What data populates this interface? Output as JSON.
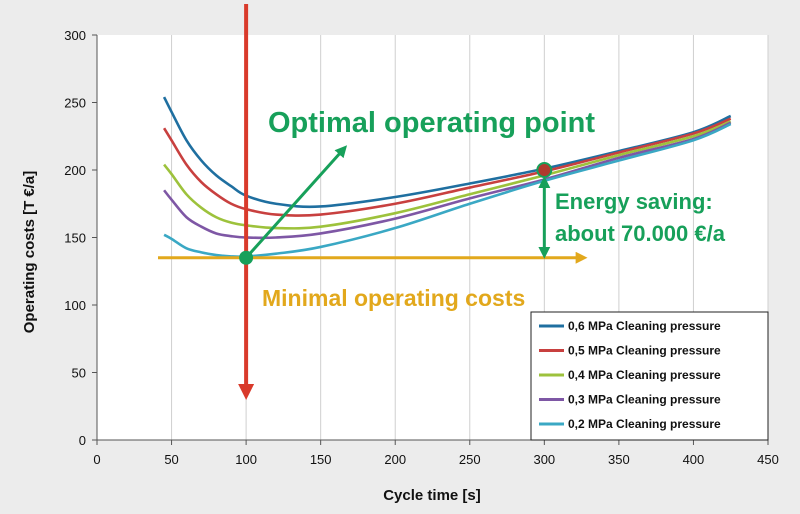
{
  "chart_data": {
    "type": "line",
    "xlabel": "Cycle time [s]",
    "ylabel": "Operating costs  [T €/a]",
    "xlim": [
      0,
      450
    ],
    "ylim": [
      0,
      300
    ],
    "x_ticks": [
      "0",
      "50",
      "100",
      "150",
      "200",
      "250",
      "300",
      "350",
      "400",
      "450"
    ],
    "y_ticks": [
      "0",
      "50",
      "100",
      "150",
      "200",
      "250",
      "300"
    ],
    "grid": "vertical",
    "legend_position": "bottom-right",
    "series": [
      {
        "name": "0,6 MPa Cleaning pressure",
        "color": "#1f6fa0",
        "points": [
          [
            45,
            254
          ],
          [
            50,
            243
          ],
          [
            60,
            222
          ],
          [
            70,
            207
          ],
          [
            80,
            196
          ],
          [
            90,
            188
          ],
          [
            100,
            181
          ],
          [
            120,
            175
          ],
          [
            150,
            173
          ],
          [
            200,
            180
          ],
          [
            250,
            190
          ],
          [
            300,
            201
          ],
          [
            350,
            214
          ],
          [
            400,
            228
          ],
          [
            425,
            240
          ]
        ]
      },
      {
        "name": "0,5 MPa Cleaning pressure",
        "color": "#c8403f",
        "points": [
          [
            45,
            231
          ],
          [
            50,
            222
          ],
          [
            60,
            204
          ],
          [
            70,
            191
          ],
          [
            80,
            182
          ],
          [
            90,
            175
          ],
          [
            100,
            171
          ],
          [
            120,
            167
          ],
          [
            150,
            167
          ],
          [
            200,
            175
          ],
          [
            250,
            187
          ],
          [
            300,
            199
          ],
          [
            350,
            213
          ],
          [
            400,
            227
          ],
          [
            425,
            238
          ]
        ]
      },
      {
        "name": "0,4 MPa Cleaning pressure",
        "color": "#9dc23c",
        "points": [
          [
            45,
            204
          ],
          [
            50,
            197
          ],
          [
            60,
            182
          ],
          [
            70,
            172
          ],
          [
            80,
            165
          ],
          [
            90,
            161
          ],
          [
            100,
            159
          ],
          [
            120,
            157
          ],
          [
            150,
            158
          ],
          [
            200,
            168
          ],
          [
            250,
            182
          ],
          [
            300,
            196
          ],
          [
            350,
            211
          ],
          [
            400,
            225
          ],
          [
            425,
            236
          ]
        ]
      },
      {
        "name": "0,3 MPa Cleaning pressure",
        "color": "#7e57a5",
        "points": [
          [
            45,
            185
          ],
          [
            50,
            178
          ],
          [
            60,
            165
          ],
          [
            70,
            158
          ],
          [
            80,
            153
          ],
          [
            90,
            151
          ],
          [
            100,
            150
          ],
          [
            120,
            150
          ],
          [
            150,
            153
          ],
          [
            200,
            164
          ],
          [
            250,
            179
          ],
          [
            300,
            193
          ],
          [
            350,
            209
          ],
          [
            400,
            223
          ],
          [
            425,
            235
          ]
        ]
      },
      {
        "name": "0,2 MPa Cleaning pressure",
        "color": "#3aa8c4",
        "points": [
          [
            45,
            152
          ],
          [
            50,
            149
          ],
          [
            60,
            142
          ],
          [
            70,
            139
          ],
          [
            80,
            137
          ],
          [
            90,
            136
          ],
          [
            100,
            136
          ],
          [
            120,
            138
          ],
          [
            150,
            143
          ],
          [
            200,
            157
          ],
          [
            250,
            175
          ],
          [
            300,
            192
          ],
          [
            350,
            207
          ],
          [
            400,
            222
          ],
          [
            425,
            234
          ]
        ]
      }
    ],
    "annotations": {
      "optimal_label": "Optimal operating point",
      "energy_label_line1": "Energy saving:",
      "energy_label_line2": "about 70.000 €/a",
      "minimal_label": "Minimal operating costs",
      "optimal_point": [
        100,
        135
      ],
      "high_point": [
        300,
        200
      ],
      "min_cost_level": 135,
      "red_arrow_x": 100,
      "green_arrow_tip": [
        165,
        215
      ],
      "orange_arrow_end_x": 325,
      "green_color": "#17a05a",
      "red_color": "#d93a2b",
      "orange_color": "#e2a81c",
      "marker_high_color": "#b03a2e"
    }
  }
}
